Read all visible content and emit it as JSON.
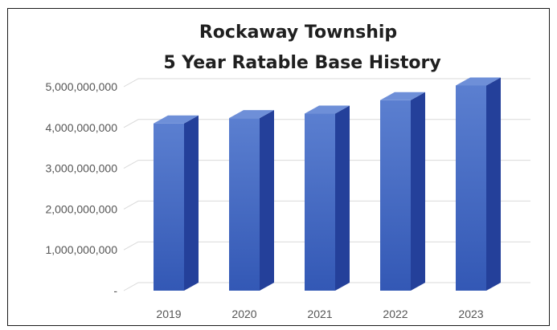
{
  "chart_data": {
    "type": "bar",
    "title": [
      "Rockaway Township",
      "5 Year Ratable Base History"
    ],
    "xlabel": "",
    "ylabel": "",
    "categories": [
      "2019",
      "2020",
      "2021",
      "2022",
      "2023"
    ],
    "values": [
      4100000000,
      4230000000,
      4340000000,
      4670000000,
      5030000000
    ],
    "ylim": [
      0,
      5000000000
    ],
    "yticks": [
      0,
      1000000000,
      2000000000,
      3000000000,
      4000000000,
      5000000000
    ],
    "ytick_labels": [
      "-",
      "1,000,000,000",
      "2,000,000,000",
      "3,000,000,000",
      "4,000,000,000",
      "5,000,000,000"
    ],
    "grid": true,
    "legend": "none",
    "style": "3d-column",
    "colors": {
      "front_top": "#5b7fd0",
      "front_bottom": "#3358b5",
      "side": "#24409a",
      "top": "#6e8fd8",
      "grid": "#d9d9d9",
      "tick_text": "#555555"
    }
  }
}
